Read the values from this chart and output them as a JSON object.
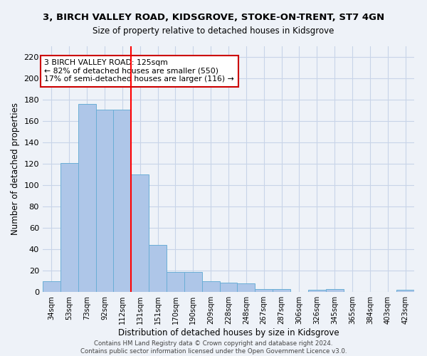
{
  "title": "3, BIRCH VALLEY ROAD, KIDSGROVE, STOKE-ON-TRENT, ST7 4GN",
  "subtitle": "Size of property relative to detached houses in Kidsgrove",
  "xlabel": "Distribution of detached houses by size in Kidsgrove",
  "ylabel": "Number of detached properties",
  "categories": [
    "34sqm",
    "53sqm",
    "73sqm",
    "92sqm",
    "112sqm",
    "131sqm",
    "151sqm",
    "170sqm",
    "190sqm",
    "209sqm",
    "228sqm",
    "248sqm",
    "267sqm",
    "287sqm",
    "306sqm",
    "326sqm",
    "345sqm",
    "365sqm",
    "384sqm",
    "403sqm",
    "423sqm"
  ],
  "values": [
    10,
    121,
    176,
    171,
    171,
    110,
    44,
    19,
    19,
    10,
    9,
    8,
    3,
    3,
    0,
    2,
    3,
    0,
    0,
    0,
    2
  ],
  "bar_color": "#aec6e8",
  "bar_edgecolor": "#6aaed6",
  "grid_color": "#c8d4e8",
  "background_color": "#eef2f8",
  "red_line_x": 4.5,
  "annotation_text": "3 BIRCH VALLEY ROAD: 125sqm\n← 82% of detached houses are smaller (550)\n17% of semi-detached houses are larger (116) →",
  "annotation_box_color": "#ffffff",
  "annotation_box_edgecolor": "#cc0000",
  "footer": "Contains HM Land Registry data © Crown copyright and database right 2024.\nContains public sector information licensed under the Open Government Licence v3.0.",
  "ylim": [
    0,
    230
  ],
  "yticks": [
    0,
    20,
    40,
    60,
    80,
    100,
    120,
    140,
    160,
    180,
    200,
    220
  ]
}
